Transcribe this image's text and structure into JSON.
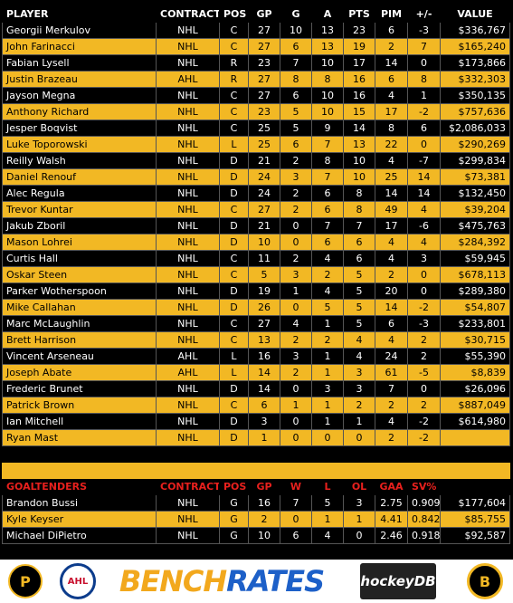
{
  "skater_headers": [
    "PLAYER",
    "CONTRACT",
    "POS",
    "GP",
    "G",
    "A",
    "PTS",
    "PIM",
    "+/-",
    "VALUE"
  ],
  "skaters": [
    [
      "Georgii Merkulov",
      "NHL",
      "C",
      "27",
      "10",
      "13",
      "23",
      "6",
      "-3",
      "$336,767"
    ],
    [
      "John Farinacci",
      "NHL",
      "C",
      "27",
      "6",
      "13",
      "19",
      "2",
      "7",
      "$165,240"
    ],
    [
      "Fabian Lysell",
      "NHL",
      "R",
      "23",
      "7",
      "10",
      "17",
      "14",
      "0",
      "$173,866"
    ],
    [
      "Justin Brazeau",
      "AHL",
      "R",
      "27",
      "8",
      "8",
      "16",
      "6",
      "8",
      "$332,303"
    ],
    [
      "Jayson Megna",
      "NHL",
      "C",
      "27",
      "6",
      "10",
      "16",
      "4",
      "1",
      "$350,135"
    ],
    [
      "Anthony Richard",
      "NHL",
      "C",
      "23",
      "5",
      "10",
      "15",
      "17",
      "-2",
      "$757,636"
    ],
    [
      "Jesper Boqvist",
      "NHL",
      "C",
      "25",
      "5",
      "9",
      "14",
      "8",
      "6",
      "$2,086,033"
    ],
    [
      "Luke Toporowski",
      "NHL",
      "L",
      "25",
      "6",
      "7",
      "13",
      "22",
      "0",
      "$290,269"
    ],
    [
      "Reilly Walsh",
      "NHL",
      "D",
      "21",
      "2",
      "8",
      "10",
      "4",
      "-7",
      "$299,834"
    ],
    [
      "Daniel Renouf",
      "NHL",
      "D",
      "24",
      "3",
      "7",
      "10",
      "25",
      "14",
      "$73,381"
    ],
    [
      "Alec Regula",
      "NHL",
      "D",
      "24",
      "2",
      "6",
      "8",
      "14",
      "14",
      "$132,450"
    ],
    [
      "Trevor Kuntar",
      "NHL",
      "C",
      "27",
      "2",
      "6",
      "8",
      "49",
      "4",
      "$39,204"
    ],
    [
      "Jakub Zboril",
      "NHL",
      "D",
      "21",
      "0",
      "7",
      "7",
      "17",
      "-6",
      "$475,763"
    ],
    [
      "Mason Lohrei",
      "NHL",
      "D",
      "10",
      "0",
      "6",
      "6",
      "4",
      "4",
      "$284,392"
    ],
    [
      "Curtis Hall",
      "NHL",
      "C",
      "11",
      "2",
      "4",
      "6",
      "4",
      "3",
      "$59,945"
    ],
    [
      "Oskar Steen",
      "NHL",
      "C",
      "5",
      "3",
      "2",
      "5",
      "2",
      "0",
      "$678,113"
    ],
    [
      "Parker Wotherspoon",
      "NHL",
      "D",
      "19",
      "1",
      "4",
      "5",
      "20",
      "0",
      "$289,380"
    ],
    [
      "Mike Callahan",
      "NHL",
      "D",
      "26",
      "0",
      "5",
      "5",
      "14",
      "-2",
      "$54,807"
    ],
    [
      "Marc McLaughlin",
      "NHL",
      "C",
      "27",
      "4",
      "1",
      "5",
      "6",
      "-3",
      "$233,801"
    ],
    [
      "Brett Harrison",
      "NHL",
      "C",
      "13",
      "2",
      "2",
      "4",
      "4",
      "2",
      "$30,715"
    ],
    [
      "Vincent Arseneau",
      "AHL",
      "L",
      "16",
      "3",
      "1",
      "4",
      "24",
      "2",
      "$55,390"
    ],
    [
      "Joseph Abate",
      "AHL",
      "L",
      "14",
      "2",
      "1",
      "3",
      "61",
      "-5",
      "$8,839"
    ],
    [
      "Frederic Brunet",
      "NHL",
      "D",
      "14",
      "0",
      "3",
      "3",
      "7",
      "0",
      "$26,096"
    ],
    [
      "Patrick Brown",
      "NHL",
      "C",
      "6",
      "1",
      "1",
      "2",
      "2",
      "2",
      "$887,049"
    ],
    [
      "Ian Mitchell",
      "NHL",
      "D",
      "3",
      "0",
      "1",
      "1",
      "4",
      "-2",
      "$614,980"
    ],
    [
      "Ryan Mast",
      "NHL",
      "D",
      "1",
      "0",
      "0",
      "0",
      "2",
      "-2",
      ""
    ]
  ],
  "goalie_headers": [
    "GOALTENDERS",
    "CONTRACT",
    "POS",
    "GP",
    "W",
    "L",
    "OL",
    "GAA",
    "SV%",
    ""
  ],
  "goalies": [
    [
      "Brandon Bussi",
      "NHL",
      "G",
      "16",
      "7",
      "5",
      "3",
      "2.75",
      "0.909",
      "$177,604"
    ],
    [
      "Kyle Keyser",
      "NHL",
      "G",
      "2",
      "0",
      "1",
      "1",
      "4.41",
      "0.842",
      "$85,755"
    ],
    [
      "Michael DiPietro",
      "NHL",
      "G",
      "10",
      "6",
      "4",
      "0",
      "2.46",
      "0.918",
      "$92,587"
    ]
  ],
  "footer": {
    "brand_part1": "BENCH",
    "brand_part2": "RATES",
    "logo_left1_letter": "P",
    "logo_left2_letter": "AHL",
    "hockeydb_label": "hockeyDB",
    "logo_right_letter": "B"
  },
  "colors": {
    "gold": "#f2b824",
    "black": "#000000",
    "goalie_header": "#e8201d",
    "brand_orange": "#f2a81d",
    "brand_blue": "#1d60c8"
  }
}
